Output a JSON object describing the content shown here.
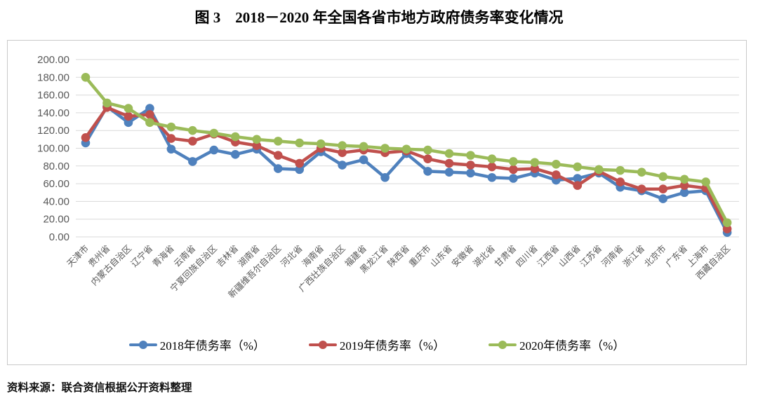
{
  "figure": {
    "title": "图 3　2018－2020 年全国各省市地方政府债务率变化情况",
    "source_note": "资料来源：联合资信根据公开资料整理"
  },
  "chart_data": {
    "type": "line",
    "title": "图 3　2018－2020 年全国各省市地方政府债务率变化情况",
    "xlabel": "",
    "ylabel": "",
    "ylim": [
      0,
      200
    ],
    "ytick_labels": [
      "0.00",
      "20.00",
      "40.00",
      "60.00",
      "80.00",
      "100.00",
      "120.00",
      "140.00",
      "160.00",
      "180.00",
      "200.00"
    ],
    "grid": "horizontal",
    "legend_position": "bottom",
    "gridline_color": "#d9d9d9",
    "axis_text_color": "#595959",
    "categories": [
      "天津市",
      "贵州省",
      "内蒙古自治区",
      "辽宁省",
      "青海省",
      "云南省",
      "宁夏回族自治区",
      "吉林省",
      "湖南省",
      "新疆维吾尔自治区",
      "河北省",
      "海南省",
      "广西壮族自治区",
      "福建省",
      "黑龙江省",
      "陕西省",
      "重庆市",
      "山东省",
      "安徽省",
      "湖北省",
      "甘肃省",
      "四川省",
      "江西省",
      "山西省",
      "江苏省",
      "河南省",
      "浙江省",
      "北京市",
      "广东省",
      "上海市",
      "西藏自治区"
    ],
    "series": [
      {
        "name": "2018年债务率（%）",
        "color": "#4f81bd",
        "values": [
          106,
          147,
          129,
          145,
          99,
          85,
          98,
          93,
          99,
          77,
          76,
          96,
          81,
          87,
          67,
          94,
          74,
          73,
          72,
          67,
          66,
          72,
          64,
          66,
          72,
          56,
          52,
          43,
          50,
          52,
          5
        ]
      },
      {
        "name": "2019年债务率（%）",
        "color": "#c0504d",
        "values": [
          112,
          146,
          136,
          138,
          111,
          108,
          116,
          107,
          103,
          92,
          83,
          100,
          95,
          98,
          95,
          97,
          88,
          83,
          81,
          79,
          76,
          77,
          70,
          58,
          74,
          62,
          54,
          54,
          58,
          55,
          9
        ]
      },
      {
        "name": "2020年债务率（%）",
        "color": "#9bbb59",
        "values": [
          180,
          151,
          145,
          129,
          124,
          120,
          117,
          113,
          110,
          108,
          106,
          105,
          103,
          102,
          100,
          99,
          98,
          94,
          92,
          88,
          85,
          84,
          82,
          79,
          76,
          75,
          73,
          68,
          65,
          62,
          16
        ]
      }
    ]
  }
}
